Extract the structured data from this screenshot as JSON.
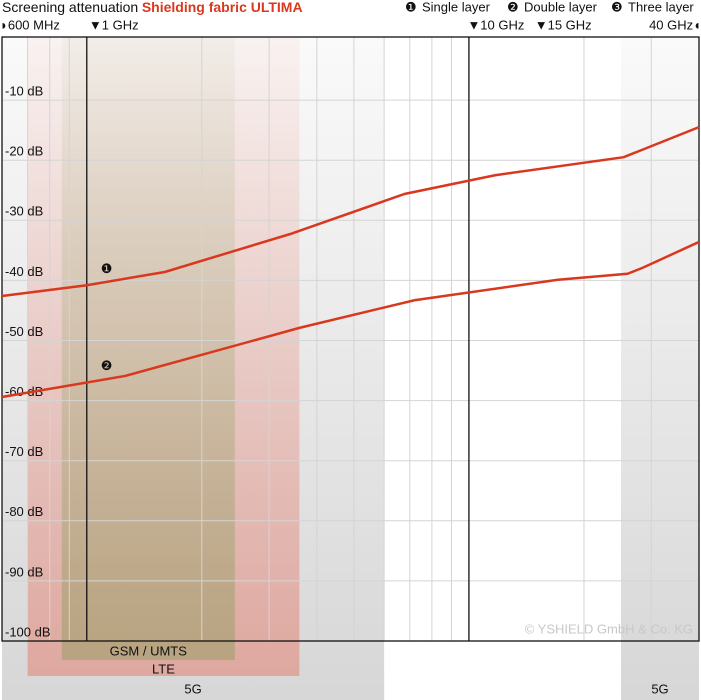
{
  "chart_data": {
    "type": "line",
    "title": "Screening attenuation",
    "subtitle": "Shielding fabric ULTIMA",
    "xscale": "log",
    "xlim": [
      0.6,
      40
    ],
    "ylim": [
      -100,
      0.5
    ],
    "xticks": [
      {
        "value": 0.6,
        "label": "◗600 MHz"
      },
      {
        "value": 1,
        "label": "▼1 GHz",
        "line": true
      },
      {
        "value": 10,
        "label": "▼10 GHz",
        "line": true
      },
      {
        "value": 15,
        "label": "▼15 GHz"
      },
      {
        "value": 40,
        "label": "40 GHz◖"
      }
    ],
    "xgrid": [
      0.7,
      0.8,
      0.9,
      2,
      3,
      4,
      5,
      6,
      7,
      8,
      9,
      20,
      30
    ],
    "yticks": [
      {
        "value": -10,
        "label": "-10 dB"
      },
      {
        "value": -20,
        "label": "-20 dB"
      },
      {
        "value": -30,
        "label": "-30 dB"
      },
      {
        "value": -40,
        "label": "-40 dB"
      },
      {
        "value": -50,
        "label": "-50 dB"
      },
      {
        "value": -60,
        "label": "-60 dB"
      },
      {
        "value": -70,
        "label": "-70 dB"
      },
      {
        "value": -80,
        "label": "-80 dB"
      },
      {
        "value": -90,
        "label": "-90 dB"
      },
      {
        "value": -100,
        "label": "-100 dB"
      }
    ],
    "grid": true,
    "series": [
      {
        "name": "Single layer",
        "marker": "❶",
        "color": "#d9381e",
        "x": [
          0.6,
          1,
          1.6,
          3.4,
          6.8,
          11.7,
          25.4,
          40
        ],
        "values": [
          -42.6,
          -40.8,
          -38.6,
          -32.3,
          -25.6,
          -22.5,
          -19.5,
          -14.5
        ]
      },
      {
        "name": "Double layer",
        "marker": "❷",
        "color": "#d9381e",
        "x": [
          0.6,
          1.26,
          3.6,
          7.2,
          17.1,
          26,
          28.5,
          40
        ],
        "values": [
          -59.4,
          -55.9,
          -47.9,
          -43.3,
          -39.9,
          -38.9,
          -37.9,
          -33.6
        ]
      },
      {
        "name": "Three layer",
        "marker": "❸",
        "color": "#d9381e",
        "x": [],
        "values": []
      }
    ],
    "bands": [
      {
        "label": "5G",
        "range": [
          0.6,
          6
        ],
        "color": "#9a9a9a"
      },
      {
        "label": "LTE",
        "range": [
          0.7,
          3.6
        ],
        "color": "#e8604a"
      },
      {
        "label": "GSM / UMTS",
        "range": [
          0.86,
          2.44
        ],
        "color": "#7d9a4e"
      },
      {
        "label": "5G",
        "range": [
          25,
          40
        ],
        "color": "#9a9a9a"
      }
    ],
    "copyright": "© YSHIELD GmbH & Co. KG"
  }
}
